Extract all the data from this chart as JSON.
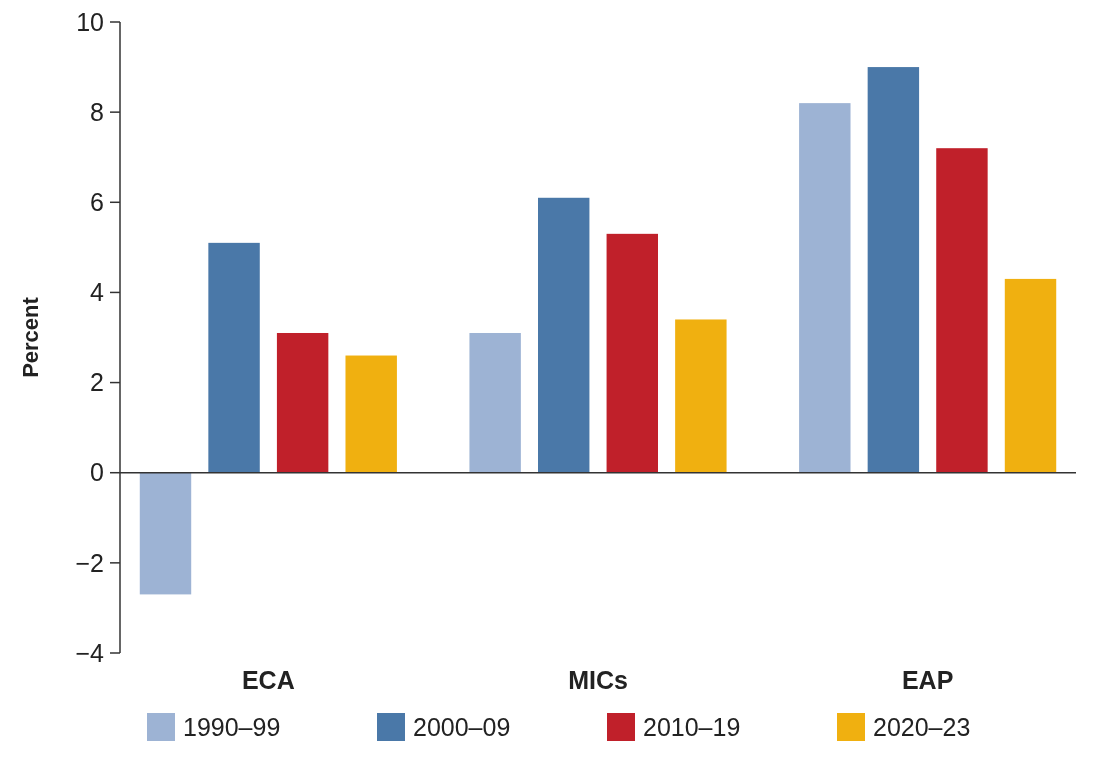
{
  "chart_data": {
    "type": "bar",
    "ylabel": "Percent",
    "categories": [
      "ECA",
      "MICs",
      "EAP"
    ],
    "series": [
      {
        "name": "1990–99",
        "color": "#9db3d4",
        "values": [
          -2.7,
          3.1,
          8.2
        ]
      },
      {
        "name": "2000–09",
        "color": "#4a78a8",
        "values": [
          5.1,
          6.1,
          9.0
        ]
      },
      {
        "name": "2010–19",
        "color": "#c0202a",
        "values": [
          3.1,
          5.3,
          7.2
        ]
      },
      {
        "name": "2020–23",
        "color": "#f0b010",
        "values": [
          2.6,
          3.4,
          4.3
        ]
      }
    ],
    "ylim": [
      -4,
      10
    ],
    "yticks": [
      {
        "value": -4,
        "label": "−4"
      },
      {
        "value": -2,
        "label": "−2"
      },
      0,
      2,
      4,
      6,
      8,
      10
    ],
    "legend": "bottom"
  }
}
